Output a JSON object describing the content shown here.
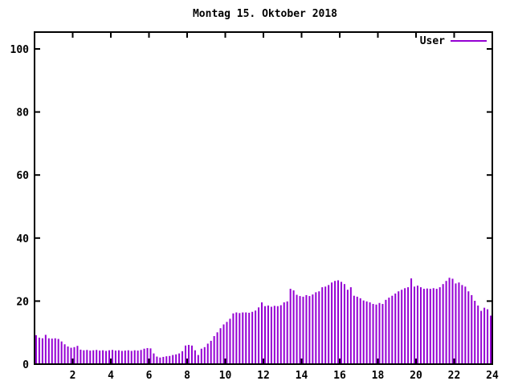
{
  "window": {
    "background": "#ffffff"
  },
  "chart": {
    "title": "Montag 15. Oktober 2018",
    "legend": [
      {
        "label": "User",
        "color": "#9400d3"
      }
    ],
    "axis_color": "#000000",
    "text_color": "#000000"
  },
  "chart_data": {
    "type": "bar",
    "title": "Montag 15. Oktober 2018",
    "xlabel": "",
    "ylabel": "",
    "x_unit": "hour-of-day",
    "x_start_hour": 0,
    "x_interval_minutes": 10,
    "xlim": [
      0,
      24
    ],
    "ylim": [
      0,
      100
    ],
    "x_tick_labels": [
      "2",
      "4",
      "6",
      "8",
      "10",
      "12",
      "14",
      "16",
      "18",
      "20",
      "22",
      "24"
    ],
    "x_tick_hours": [
      2,
      4,
      6,
      8,
      10,
      12,
      14,
      16,
      18,
      20,
      22,
      24
    ],
    "y_tick_labels": [
      "0",
      "20",
      "40",
      "60",
      "80",
      "100"
    ],
    "y_tick_values": [
      0,
      20,
      40,
      60,
      80,
      100
    ],
    "grid": false,
    "legend_position": "top-right",
    "series": [
      {
        "name": "User",
        "color": "#9400d3",
        "values": [
          9.2,
          8.4,
          8.2,
          9.3,
          8.2,
          8.1,
          8.2,
          8.0,
          7.2,
          6.3,
          5.6,
          5.2,
          5.4,
          5.8,
          4.6,
          4.4,
          4.5,
          4.3,
          4.4,
          4.5,
          4.3,
          4.4,
          4.2,
          4.4,
          4.5,
          4.3,
          4.4,
          4.2,
          4.3,
          4.4,
          4.2,
          4.4,
          4.3,
          4.5,
          4.9,
          5.1,
          5.0,
          3.4,
          2.4,
          2.1,
          2.3,
          2.5,
          2.6,
          2.9,
          3.1,
          3.4,
          4.1,
          5.9,
          6.1,
          5.9,
          4.4,
          2.9,
          4.9,
          5.4,
          6.5,
          7.4,
          8.9,
          10.1,
          11.4,
          12.6,
          13.4,
          14.4,
          16.1,
          16.4,
          16.2,
          16.4,
          16.4,
          16.3,
          16.6,
          17.0,
          18.0,
          19.6,
          18.4,
          18.6,
          18.2,
          18.5,
          18.4,
          18.7,
          19.6,
          19.9,
          23.9,
          23.4,
          22.0,
          21.6,
          21.4,
          21.9,
          21.6,
          22.1,
          22.8,
          23.1,
          24.4,
          24.6,
          25.1,
          25.9,
          26.4,
          26.6,
          26.1,
          25.4,
          23.6,
          24.4,
          21.7,
          21.4,
          20.9,
          20.2,
          19.9,
          19.6,
          19.1,
          18.9,
          19.4,
          19.1,
          20.4,
          21.1,
          21.7,
          22.4,
          23.1,
          23.6,
          24.1,
          24.4,
          27.2,
          24.6,
          24.9,
          24.4,
          23.9,
          24.0,
          23.9,
          24.1,
          23.9,
          24.4,
          25.4,
          26.4,
          27.4,
          27.1,
          25.6,
          25.9,
          25.1,
          24.6,
          23.1,
          21.9,
          20.1,
          18.6,
          16.9,
          17.9,
          17.4,
          15.4
        ]
      }
    ]
  }
}
